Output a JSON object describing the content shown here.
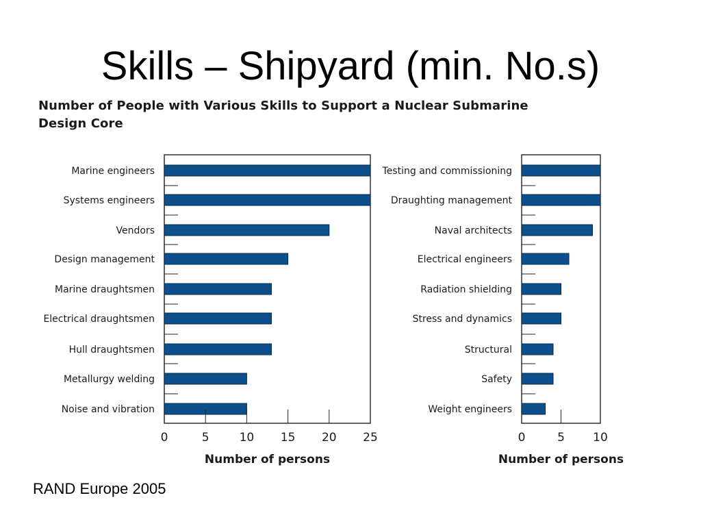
{
  "slide": {
    "title": "Skills – Shipyard (min. No.s)",
    "figure_title_line1": "Number of People with Various Skills to Support a Nuclear Submarine",
    "figure_title_line2": "Design Core",
    "source": "RAND Europe 2005"
  },
  "colors": {
    "bar_fill": "#0d4f8b",
    "bar_stroke": "#0a2a4a",
    "axis": "#222222"
  },
  "chart_data": [
    {
      "type": "bar",
      "orientation": "horizontal",
      "categories": [
        "Marine engineers",
        "Systems engineers",
        "Vendors",
        "Design management",
        "Marine draughtsmen",
        "Electrical draughtsmen",
        "Hull draughtsmen",
        "Metallurgy welding",
        "Noise and vibration"
      ],
      "values": [
        25,
        25,
        20,
        15,
        13,
        13,
        13,
        10,
        10
      ],
      "xlabel": "Number of persons",
      "xlim": [
        0,
        25
      ],
      "xticks": [
        0,
        5,
        10,
        15,
        20,
        25
      ],
      "grid": false
    },
    {
      "type": "bar",
      "orientation": "horizontal",
      "categories": [
        "Testing and commissioning",
        "Draughting management",
        "Naval architects",
        "Electrical engineers",
        "Radiation shielding",
        "Stress and dynamics",
        "Structural",
        "Safety",
        "Weight engineers"
      ],
      "values": [
        10,
        10,
        9,
        6,
        5,
        5,
        4,
        4,
        3
      ],
      "xlabel": "Number of persons",
      "xlim": [
        0,
        10
      ],
      "xticks": [
        0,
        5,
        10
      ],
      "grid": false
    }
  ]
}
